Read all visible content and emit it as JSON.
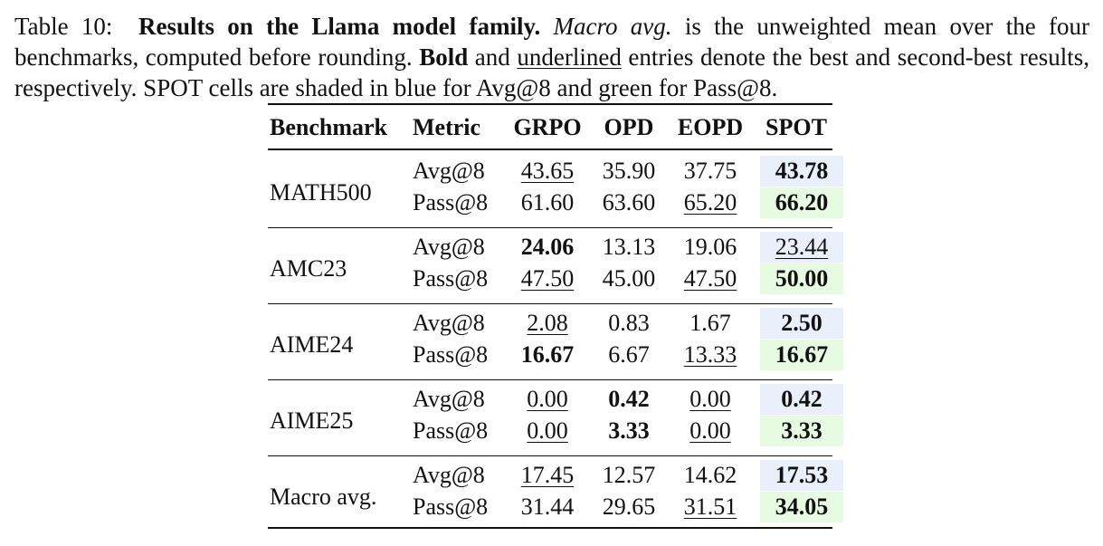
{
  "caption": {
    "label": "Table 10:",
    "title": "Results on the Llama model family.",
    "macro_term": "Macro avg.",
    "text_1": " is the unweighted mean over the four benchmarks, computed before rounding. ",
    "bold_word": "Bold",
    "text_2": " and ",
    "underline_word": "underlined",
    "text_3": " entries denote the best and second-best results, respectively. SPOT cells are shaded in blue for Avg@8 and green for Pass@8."
  },
  "table": {
    "headers": [
      "Benchmark",
      "Metric",
      "GRPO",
      "OPD",
      "EOPD",
      "SPOT"
    ],
    "shade_colors": {
      "avg": "#e9effb",
      "pass": "#e7fbe3"
    },
    "groups": [
      {
        "benchmark": "MATH500",
        "rows": [
          {
            "metric": "Avg@8",
            "values": [
              "43.65",
              "35.90",
              "37.75",
              "43.78"
            ],
            "bold": [
              false,
              false,
              false,
              true
            ],
            "underline": [
              true,
              false,
              false,
              false
            ]
          },
          {
            "metric": "Pass@8",
            "values": [
              "61.60",
              "63.60",
              "65.20",
              "66.20"
            ],
            "bold": [
              false,
              false,
              false,
              true
            ],
            "underline": [
              false,
              false,
              true,
              false
            ]
          }
        ]
      },
      {
        "benchmark": "AMC23",
        "rows": [
          {
            "metric": "Avg@8",
            "values": [
              "24.06",
              "13.13",
              "19.06",
              "23.44"
            ],
            "bold": [
              true,
              false,
              false,
              false
            ],
            "underline": [
              false,
              false,
              false,
              true
            ]
          },
          {
            "metric": "Pass@8",
            "values": [
              "47.50",
              "45.00",
              "47.50",
              "50.00"
            ],
            "bold": [
              false,
              false,
              false,
              true
            ],
            "underline": [
              true,
              false,
              true,
              false
            ]
          }
        ]
      },
      {
        "benchmark": "AIME24",
        "rows": [
          {
            "metric": "Avg@8",
            "values": [
              "2.08",
              "0.83",
              "1.67",
              "2.50"
            ],
            "bold": [
              false,
              false,
              false,
              true
            ],
            "underline": [
              true,
              false,
              false,
              false
            ]
          },
          {
            "metric": "Pass@8",
            "values": [
              "16.67",
              "6.67",
              "13.33",
              "16.67"
            ],
            "bold": [
              true,
              false,
              false,
              true
            ],
            "underline": [
              false,
              false,
              true,
              false
            ]
          }
        ]
      },
      {
        "benchmark": "AIME25",
        "rows": [
          {
            "metric": "Avg@8",
            "values": [
              "0.00",
              "0.42",
              "0.00",
              "0.42"
            ],
            "bold": [
              false,
              true,
              false,
              true
            ],
            "underline": [
              true,
              false,
              true,
              false
            ]
          },
          {
            "metric": "Pass@8",
            "values": [
              "0.00",
              "3.33",
              "0.00",
              "3.33"
            ],
            "bold": [
              false,
              true,
              false,
              true
            ],
            "underline": [
              true,
              false,
              true,
              false
            ]
          }
        ]
      },
      {
        "benchmark": "Macro avg.",
        "rows": [
          {
            "metric": "Avg@8",
            "values": [
              "17.45",
              "12.57",
              "14.62",
              "17.53"
            ],
            "bold": [
              false,
              false,
              false,
              true
            ],
            "underline": [
              true,
              false,
              false,
              false
            ]
          },
          {
            "metric": "Pass@8",
            "values": [
              "31.44",
              "29.65",
              "31.51",
              "34.05"
            ],
            "bold": [
              false,
              false,
              false,
              true
            ],
            "underline": [
              false,
              false,
              true,
              false
            ]
          }
        ]
      }
    ]
  }
}
